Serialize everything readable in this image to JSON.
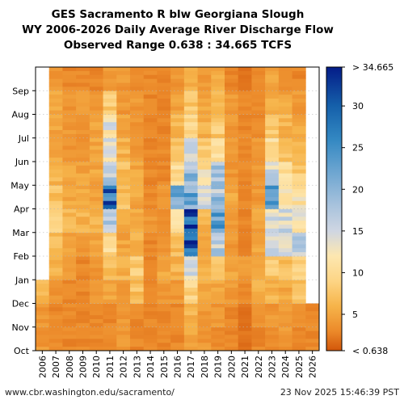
{
  "chart_data": {
    "type": "heatmap",
    "title_lines": [
      "GES Sacramento R blw Georgiana Slough",
      "WY 2006-2026 Daily Average River Discharge Flow",
      "Observed Range 0.638 : 34.665 TCFS"
    ],
    "x_categories": [
      "2006",
      "2007",
      "2008",
      "2009",
      "2010",
      "2011",
      "2012",
      "2013",
      "2014",
      "2015",
      "2016",
      "2017",
      "2018",
      "2019",
      "2020",
      "2021",
      "2022",
      "2023",
      "2024",
      "2025",
      "2026"
    ],
    "y_categories": [
      "Oct",
      "Nov",
      "Dec",
      "Jan",
      "Feb",
      "Mar",
      "Apr",
      "May",
      "Jun",
      "Jul",
      "Aug",
      "Sep"
    ],
    "value_units": "TCFS",
    "value_range": [
      0.638,
      34.665
    ],
    "colorbar": {
      "ticks": [
        30,
        25,
        20,
        15,
        10,
        5
      ],
      "top_label": "> 34.665",
      "bottom_label": "< 0.638",
      "stops": [
        [
          0.638,
          "#d2560a"
        ],
        [
          3,
          "#ec8a2a"
        ],
        [
          6,
          "#f6b44a"
        ],
        [
          9,
          "#fdd585"
        ],
        [
          12,
          "#fde7b0"
        ],
        [
          15,
          "#cfd6e2"
        ],
        [
          18,
          "#a9c3dd"
        ],
        [
          22,
          "#6ea6d1"
        ],
        [
          26,
          "#3388c2"
        ],
        [
          30,
          "#1560aa"
        ],
        [
          34.665,
          "#041c88"
        ]
      ]
    },
    "monthly_flow": [
      {
        "year": "2006",
        "values": [
          4,
          4,
          7,
          null,
          null,
          null,
          null,
          null,
          null,
          null,
          null,
          null
        ]
      },
      {
        "year": "2007",
        "values": [
          3,
          3,
          4,
          6,
          7,
          8,
          7,
          6,
          5,
          5,
          5,
          4
        ]
      },
      {
        "year": "2008",
        "values": [
          3,
          3,
          3,
          4,
          5,
          6,
          5,
          5,
          4,
          4,
          4,
          3
        ]
      },
      {
        "year": "2009",
        "values": [
          3,
          3,
          3,
          3,
          4,
          6,
          5,
          5,
          4,
          4,
          4,
          3
        ]
      },
      {
        "year": "2010",
        "values": [
          3,
          3,
          4,
          4,
          5,
          6,
          5,
          5,
          5,
          5,
          4,
          3
        ]
      },
      {
        "year": "2011",
        "values": [
          3,
          3,
          5,
          7,
          10,
          16,
          28,
          18,
          14,
          13,
          8,
          4
        ]
      },
      {
        "year": "2012",
        "values": [
          4,
          4,
          4,
          6,
          5,
          5,
          7,
          7,
          6,
          5,
          4,
          4
        ]
      },
      {
        "year": "2013",
        "values": [
          3,
          3,
          7,
          8,
          6,
          5,
          5,
          5,
          4,
          4,
          4,
          3
        ]
      },
      {
        "year": "2014",
        "values": [
          3,
          3,
          3,
          3,
          3,
          4,
          3,
          3,
          3,
          3,
          3,
          3
        ]
      },
      {
        "year": "2015",
        "values": [
          3,
          3,
          4,
          5,
          4,
          3,
          4,
          3,
          3,
          3,
          3,
          3
        ]
      },
      {
        "year": "2016",
        "values": [
          3,
          3,
          4,
          6,
          7,
          10,
          20,
          10,
          7,
          6,
          5,
          4
        ]
      },
      {
        "year": "2017",
        "values": [
          5,
          6,
          9,
          15,
          32,
          30,
          22,
          20,
          14,
          10,
          8,
          6
        ]
      },
      {
        "year": "2018",
        "values": [
          4,
          4,
          5,
          6,
          5,
          6,
          14,
          11,
          8,
          6,
          5,
          4
        ]
      },
      {
        "year": "2019",
        "values": [
          3,
          4,
          5,
          7,
          16,
          22,
          18,
          17,
          10,
          8,
          6,
          5
        ]
      },
      {
        "year": "2020",
        "values": [
          3,
          3,
          4,
          5,
          4,
          4,
          5,
          4,
          4,
          4,
          4,
          3
        ]
      },
      {
        "year": "2021",
        "values": [
          2,
          2,
          3,
          4,
          3,
          3,
          3,
          3,
          3,
          3,
          3,
          2
        ]
      },
      {
        "year": "2022",
        "values": [
          3,
          4,
          6,
          6,
          5,
          5,
          4,
          4,
          4,
          3,
          3,
          3
        ]
      },
      {
        "year": "2023",
        "values": [
          3,
          4,
          6,
          8,
          14,
          15,
          22,
          15,
          10,
          8,
          6,
          5
        ]
      },
      {
        "year": "2024",
        "values": [
          4,
          4,
          5,
          7,
          13,
          15,
          13,
          10,
          8,
          6,
          5,
          4
        ]
      },
      {
        "year": "2025",
        "values": [
          3,
          4,
          7,
          9,
          17,
          13,
          11,
          8,
          6,
          5,
          4,
          3
        ]
      },
      {
        "year": "2026",
        "values": [
          3,
          3,
          null,
          null,
          null,
          null,
          null,
          null,
          null,
          null,
          null,
          null
        ]
      }
    ]
  },
  "footer": {
    "url": "www.cbr.washington.edu/sacramento/",
    "timestamp": "23 Nov 2025 15:46:39 PST"
  }
}
